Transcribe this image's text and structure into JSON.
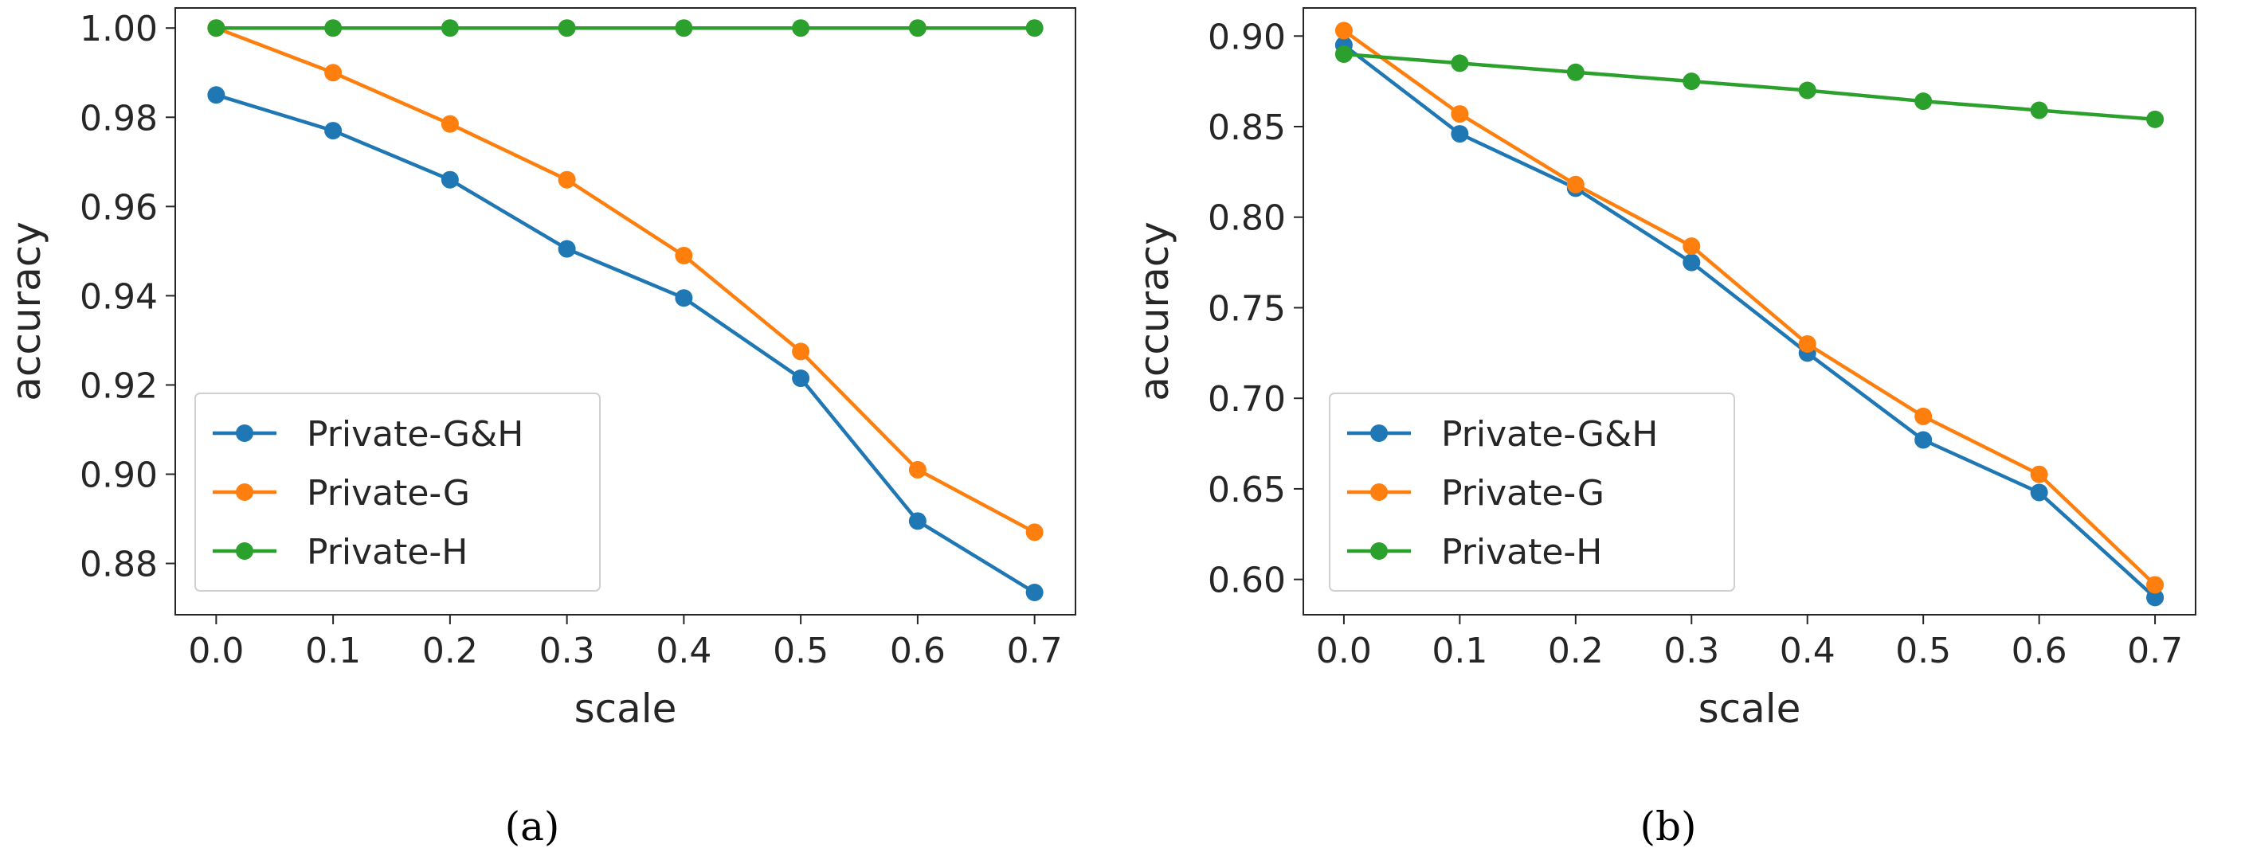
{
  "chart_data": [
    {
      "type": "line",
      "panel": "a",
      "caption": "(a)",
      "xlabel": "scale",
      "ylabel": "accuracy",
      "x": [
        0.0,
        0.1,
        0.2,
        0.3,
        0.4,
        0.5,
        0.6,
        0.7
      ],
      "xlim": [
        -0.035,
        0.735
      ],
      "ylim": [
        0.8685,
        1.0045
      ],
      "xticks": [
        0.0,
        0.1,
        0.2,
        0.3,
        0.4,
        0.5,
        0.6,
        0.7
      ],
      "xtick_labels": [
        "0.0",
        "0.1",
        "0.2",
        "0.3",
        "0.4",
        "0.5",
        "0.6",
        "0.7"
      ],
      "yticks": [
        0.88,
        0.9,
        0.92,
        0.94,
        0.96,
        0.98,
        1.0
      ],
      "ytick_labels": [
        "0.88",
        "0.90",
        "0.92",
        "0.94",
        "0.96",
        "0.98",
        "1.00"
      ],
      "legend_position": "lower-left",
      "series": [
        {
          "name": "Private-G&H",
          "color": "#1f77b4",
          "values": [
            0.985,
            0.977,
            0.966,
            0.9505,
            0.9395,
            0.9215,
            0.8895,
            0.8735
          ]
        },
        {
          "name": "Private-G",
          "color": "#ff7f0e",
          "values": [
            1.0,
            0.99,
            0.9785,
            0.966,
            0.949,
            0.9275,
            0.901,
            0.887
          ]
        },
        {
          "name": "Private-H",
          "color": "#2ca02c",
          "values": [
            1.0,
            1.0,
            1.0,
            1.0,
            1.0,
            1.0,
            1.0,
            1.0
          ]
        }
      ]
    },
    {
      "type": "line",
      "panel": "b",
      "caption": "(b)",
      "xlabel": "scale",
      "ylabel": "accuracy",
      "x": [
        0.0,
        0.1,
        0.2,
        0.3,
        0.4,
        0.5,
        0.6,
        0.7
      ],
      "xlim": [
        -0.035,
        0.735
      ],
      "ylim": [
        0.5805,
        0.9155
      ],
      "xticks": [
        0.0,
        0.1,
        0.2,
        0.3,
        0.4,
        0.5,
        0.6,
        0.7
      ],
      "xtick_labels": [
        "0.0",
        "0.1",
        "0.2",
        "0.3",
        "0.4",
        "0.5",
        "0.6",
        "0.7"
      ],
      "yticks": [
        0.6,
        0.65,
        0.7,
        0.75,
        0.8,
        0.85,
        0.9
      ],
      "ytick_labels": [
        "0.60",
        "0.65",
        "0.70",
        "0.75",
        "0.80",
        "0.85",
        "0.90"
      ],
      "legend_position": "lower-left",
      "series": [
        {
          "name": "Private-G&H",
          "color": "#1f77b4",
          "values": [
            0.895,
            0.846,
            0.816,
            0.775,
            0.725,
            0.677,
            0.648,
            0.59
          ]
        },
        {
          "name": "Private-G",
          "color": "#ff7f0e",
          "values": [
            0.903,
            0.857,
            0.818,
            0.784,
            0.73,
            0.69,
            0.658,
            0.597
          ]
        },
        {
          "name": "Private-H",
          "color": "#2ca02c",
          "values": [
            0.89,
            0.885,
            0.88,
            0.875,
            0.87,
            0.864,
            0.859,
            0.854
          ]
        }
      ]
    }
  ]
}
